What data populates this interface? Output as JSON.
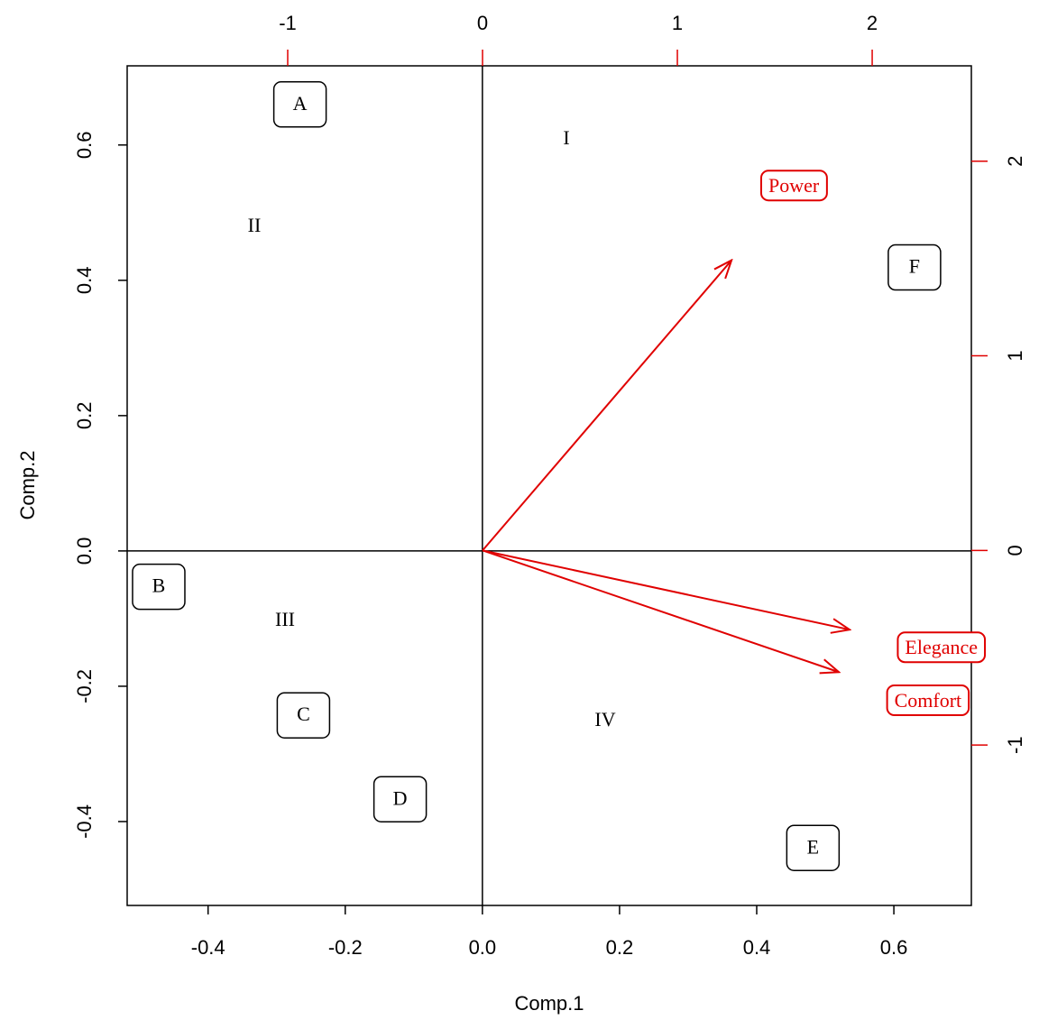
{
  "chart_data": {
    "type": "biplot",
    "xlabel": "Comp.1",
    "ylabel": "Comp.2",
    "xlim": [
      -0.518,
      0.713
    ],
    "ylim": [
      -0.524,
      0.717
    ],
    "xticks": [
      -0.4,
      -0.2,
      {
        "value": 0,
        "label": "0.0"
      },
      0.2,
      0.4,
      0.6
    ],
    "yticks": [
      -0.4,
      -0.2,
      {
        "value": 0,
        "label": "0.0"
      },
      0.2,
      0.4,
      0.6
    ],
    "x2lim": [
      -1.824,
      2.509
    ],
    "y2lim": [
      -1.824,
      2.49
    ],
    "x2ticks": [
      -1,
      0,
      1,
      2
    ],
    "y2ticks": [
      -1,
      0,
      1,
      2
    ],
    "axis_color": "#e00000",
    "points": {
      "labels": [
        "A",
        "B",
        "C",
        "D",
        "E",
        "F"
      ],
      "x": [
        -0.266,
        -0.472,
        -0.261,
        -0.12,
        0.482,
        0.63
      ],
      "y": [
        0.66,
        -0.053,
        -0.243,
        -0.367,
        -0.439,
        0.419
      ],
      "color": "#000000"
    },
    "arrows": {
      "labels": [
        "Power",
        "Elegance",
        "Comfort"
      ],
      "x": [
        1.278,
        1.884,
        1.829
      ],
      "y": [
        1.491,
        -0.407,
        -0.625
      ],
      "color": "#e00000"
    },
    "annotations": [
      "I",
      "II",
      "III",
      "IV"
    ]
  }
}
